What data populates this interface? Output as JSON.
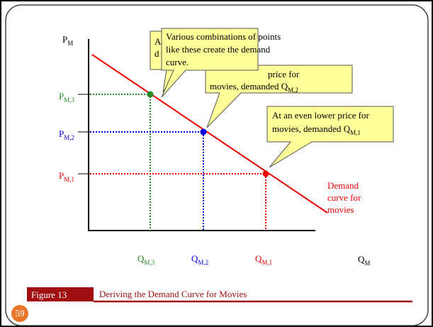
{
  "axes": {
    "y_label": {
      "main": "P",
      "sub": "M"
    },
    "x_label": {
      "main": "Q",
      "sub": "M"
    }
  },
  "prices": [
    {
      "main": "P",
      "sub": "M,3"
    },
    {
      "main": "P",
      "sub": "M,2"
    },
    {
      "main": "P",
      "sub": "M,1"
    }
  ],
  "quantities": [
    {
      "main": "Q",
      "sub": "M,3"
    },
    {
      "main": "Q",
      "sub": "M,2"
    },
    {
      "main": "Q",
      "sub": "M,1"
    }
  ],
  "callouts": [
    {
      "lines": [
        "A",
        "d"
      ]
    },
    {
      "lines": [
        "price for",
        "movies, demanded Q"
      ],
      "sub": "M,2"
    },
    {
      "lines": [
        "At an even lower price for",
        "movies, demanded Q"
      ],
      "sub": "M,1"
    },
    {
      "lines": [
        "Various combinations of points",
        "like these create the demand",
        "curve."
      ]
    }
  ],
  "curve_label": [
    "Demand",
    "curve for",
    "movies"
  ],
  "footer": {
    "figure": "Figure 13",
    "caption": "Deriving the Demand Curve for Movies",
    "page": "59"
  }
}
